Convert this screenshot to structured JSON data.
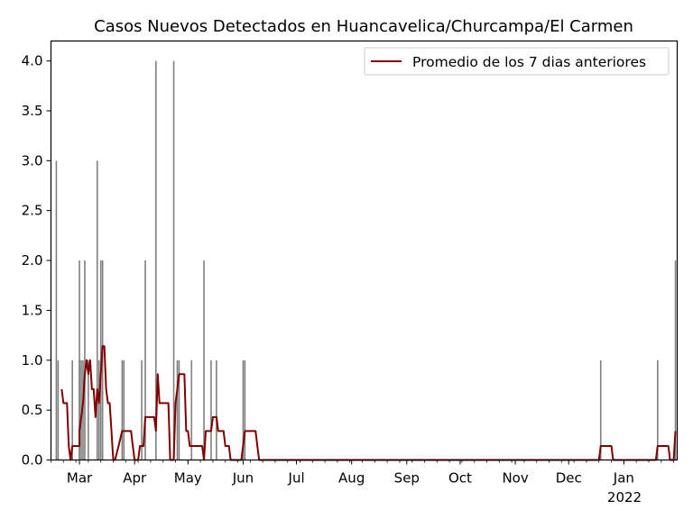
{
  "chart_data": {
    "type": "bar",
    "title": "Casos Nuevos Detectados en Huancavelica/Churcampa/El Carmen",
    "xlabel": "",
    "ylabel": "",
    "x_start": "2021-02-13",
    "x_end": "2022-01-31",
    "ylim": [
      0,
      4.2
    ],
    "y_ticks": [
      "0.0",
      "0.5",
      "1.0",
      "1.5",
      "2.0",
      "2.5",
      "3.0",
      "3.5",
      "4.0"
    ],
    "x_ticks": [
      {
        "date": "2021-03-01",
        "label": "Mar"
      },
      {
        "date": "2021-04-01",
        "label": "Apr"
      },
      {
        "date": "2021-05-01",
        "label": "May"
      },
      {
        "date": "2021-06-01",
        "label": "Jun"
      },
      {
        "date": "2021-07-01",
        "label": "Jul"
      },
      {
        "date": "2021-08-01",
        "label": "Aug"
      },
      {
        "date": "2021-09-01",
        "label": "Sep"
      },
      {
        "date": "2021-10-01",
        "label": "Oct"
      },
      {
        "date": "2021-11-01",
        "label": "Nov"
      },
      {
        "date": "2021-12-01",
        "label": "Dec"
      },
      {
        "date": "2022-01-01",
        "label": "Jan"
      }
    ],
    "year_label": "2022",
    "grid": false,
    "legend_position": "top-right",
    "colors": {
      "bars": "#808080",
      "line": "#800000"
    },
    "bars": [
      {
        "x": "2021-02-16",
        "y": 3
      },
      {
        "x": "2021-02-17",
        "y": 1
      },
      {
        "x": "2021-02-25",
        "y": 1
      },
      {
        "x": "2021-02-29",
        "y": 1
      },
      {
        "x": "2021-03-01",
        "y": 2
      },
      {
        "x": "2021-03-02",
        "y": 1
      },
      {
        "x": "2021-03-03",
        "y": 1
      },
      {
        "x": "2021-03-04",
        "y": 2
      },
      {
        "x": "2021-03-06",
        "y": 1
      },
      {
        "x": "2021-03-11",
        "y": 3
      },
      {
        "x": "2021-03-12",
        "y": 1
      },
      {
        "x": "2021-03-13",
        "y": 2
      },
      {
        "x": "2021-03-14",
        "y": 2
      },
      {
        "x": "2021-03-25",
        "y": 1
      },
      {
        "x": "2021-03-26",
        "y": 1
      },
      {
        "x": "2021-04-05",
        "y": 1
      },
      {
        "x": "2021-04-07",
        "y": 2
      },
      {
        "x": "2021-04-13",
        "y": 4
      },
      {
        "x": "2021-04-23",
        "y": 4
      },
      {
        "x": "2021-04-25",
        "y": 1
      },
      {
        "x": "2021-04-26",
        "y": 1
      },
      {
        "x": "2021-05-03",
        "y": 1
      },
      {
        "x": "2021-05-10",
        "y": 2
      },
      {
        "x": "2021-05-14",
        "y": 1
      },
      {
        "x": "2021-05-17",
        "y": 1
      },
      {
        "x": "2021-06-01",
        "y": 1
      },
      {
        "x": "2021-06-02",
        "y": 1
      },
      {
        "x": "2021-12-19",
        "y": 1
      },
      {
        "x": "2022-01-20",
        "y": 1
      },
      {
        "x": "2022-01-30",
        "y": 2
      }
    ],
    "series": [
      {
        "name": "Promedio de los 7 dias anteriores",
        "points": [
          [
            "2021-02-19",
            0.71
          ],
          [
            "2021-02-20",
            0.57
          ],
          [
            "2021-02-22",
            0.57
          ],
          [
            "2021-02-23",
            0.14
          ],
          [
            "2021-02-24",
            0.0
          ],
          [
            "2021-02-25",
            0.14
          ],
          [
            "2021-02-29",
            0.14
          ],
          [
            "2021-03-01",
            0.29
          ],
          [
            "2021-03-02",
            0.43
          ],
          [
            "2021-03-03",
            0.57
          ],
          [
            "2021-03-04",
            0.86
          ],
          [
            "2021-03-05",
            1.0
          ],
          [
            "2021-03-06",
            0.86
          ],
          [
            "2021-03-07",
            1.0
          ],
          [
            "2021-03-08",
            0.71
          ],
          [
            "2021-03-09",
            0.71
          ],
          [
            "2021-03-10",
            0.43
          ],
          [
            "2021-03-11",
            0.71
          ],
          [
            "2021-03-12",
            0.57
          ],
          [
            "2021-03-13",
            0.86
          ],
          [
            "2021-03-14",
            1.14
          ],
          [
            "2021-03-15",
            1.14
          ],
          [
            "2021-03-16",
            0.71
          ],
          [
            "2021-03-17",
            0.57
          ],
          [
            "2021-03-18",
            0.57
          ],
          [
            "2021-03-19",
            0.29
          ],
          [
            "2021-03-20",
            0.0
          ],
          [
            "2021-03-21",
            0.0
          ],
          [
            "2021-03-23",
            0.14
          ],
          [
            "2021-03-25",
            0.29
          ],
          [
            "2021-03-30",
            0.29
          ],
          [
            "2021-03-31",
            0.14
          ],
          [
            "2021-04-01",
            0.0
          ],
          [
            "2021-04-03",
            0.0
          ],
          [
            "2021-04-04",
            0.14
          ],
          [
            "2021-04-06",
            0.14
          ],
          [
            "2021-04-07",
            0.43
          ],
          [
            "2021-04-12",
            0.43
          ],
          [
            "2021-04-13",
            0.29
          ],
          [
            "2021-04-14",
            0.86
          ],
          [
            "2021-04-15",
            0.57
          ],
          [
            "2021-04-20",
            0.57
          ],
          [
            "2021-04-21",
            0.0
          ],
          [
            "2021-04-23",
            0.0
          ],
          [
            "2021-04-24",
            0.57
          ],
          [
            "2021-04-25",
            0.71
          ],
          [
            "2021-04-26",
            0.86
          ],
          [
            "2021-04-29",
            0.86
          ],
          [
            "2021-04-30",
            0.29
          ],
          [
            "2021-05-01",
            0.29
          ],
          [
            "2021-05-02",
            0.14
          ],
          [
            "2021-05-09",
            0.14
          ],
          [
            "2021-05-10",
            0.0
          ],
          [
            "2021-05-11",
            0.29
          ],
          [
            "2021-05-14",
            0.29
          ],
          [
            "2021-05-15",
            0.43
          ],
          [
            "2021-05-17",
            0.43
          ],
          [
            "2021-05-18",
            0.29
          ],
          [
            "2021-05-21",
            0.29
          ],
          [
            "2021-05-22",
            0.14
          ],
          [
            "2021-05-24",
            0.14
          ],
          [
            "2021-05-25",
            0.0
          ],
          [
            "2021-05-31",
            0.0
          ],
          [
            "2021-06-02",
            0.29
          ],
          [
            "2021-06-08",
            0.29
          ],
          [
            "2021-06-09",
            0.14
          ],
          [
            "2021-06-10",
            0.0
          ],
          [
            "2021-12-18",
            0.0
          ],
          [
            "2021-12-19",
            0.14
          ],
          [
            "2021-12-25",
            0.14
          ],
          [
            "2021-12-26",
            0.0
          ],
          [
            "2022-01-19",
            0.0
          ],
          [
            "2022-01-20",
            0.14
          ],
          [
            "2022-01-26",
            0.14
          ],
          [
            "2022-01-27",
            0.0
          ],
          [
            "2022-01-29",
            0.0
          ],
          [
            "2022-01-30",
            0.29
          ]
        ]
      }
    ]
  }
}
